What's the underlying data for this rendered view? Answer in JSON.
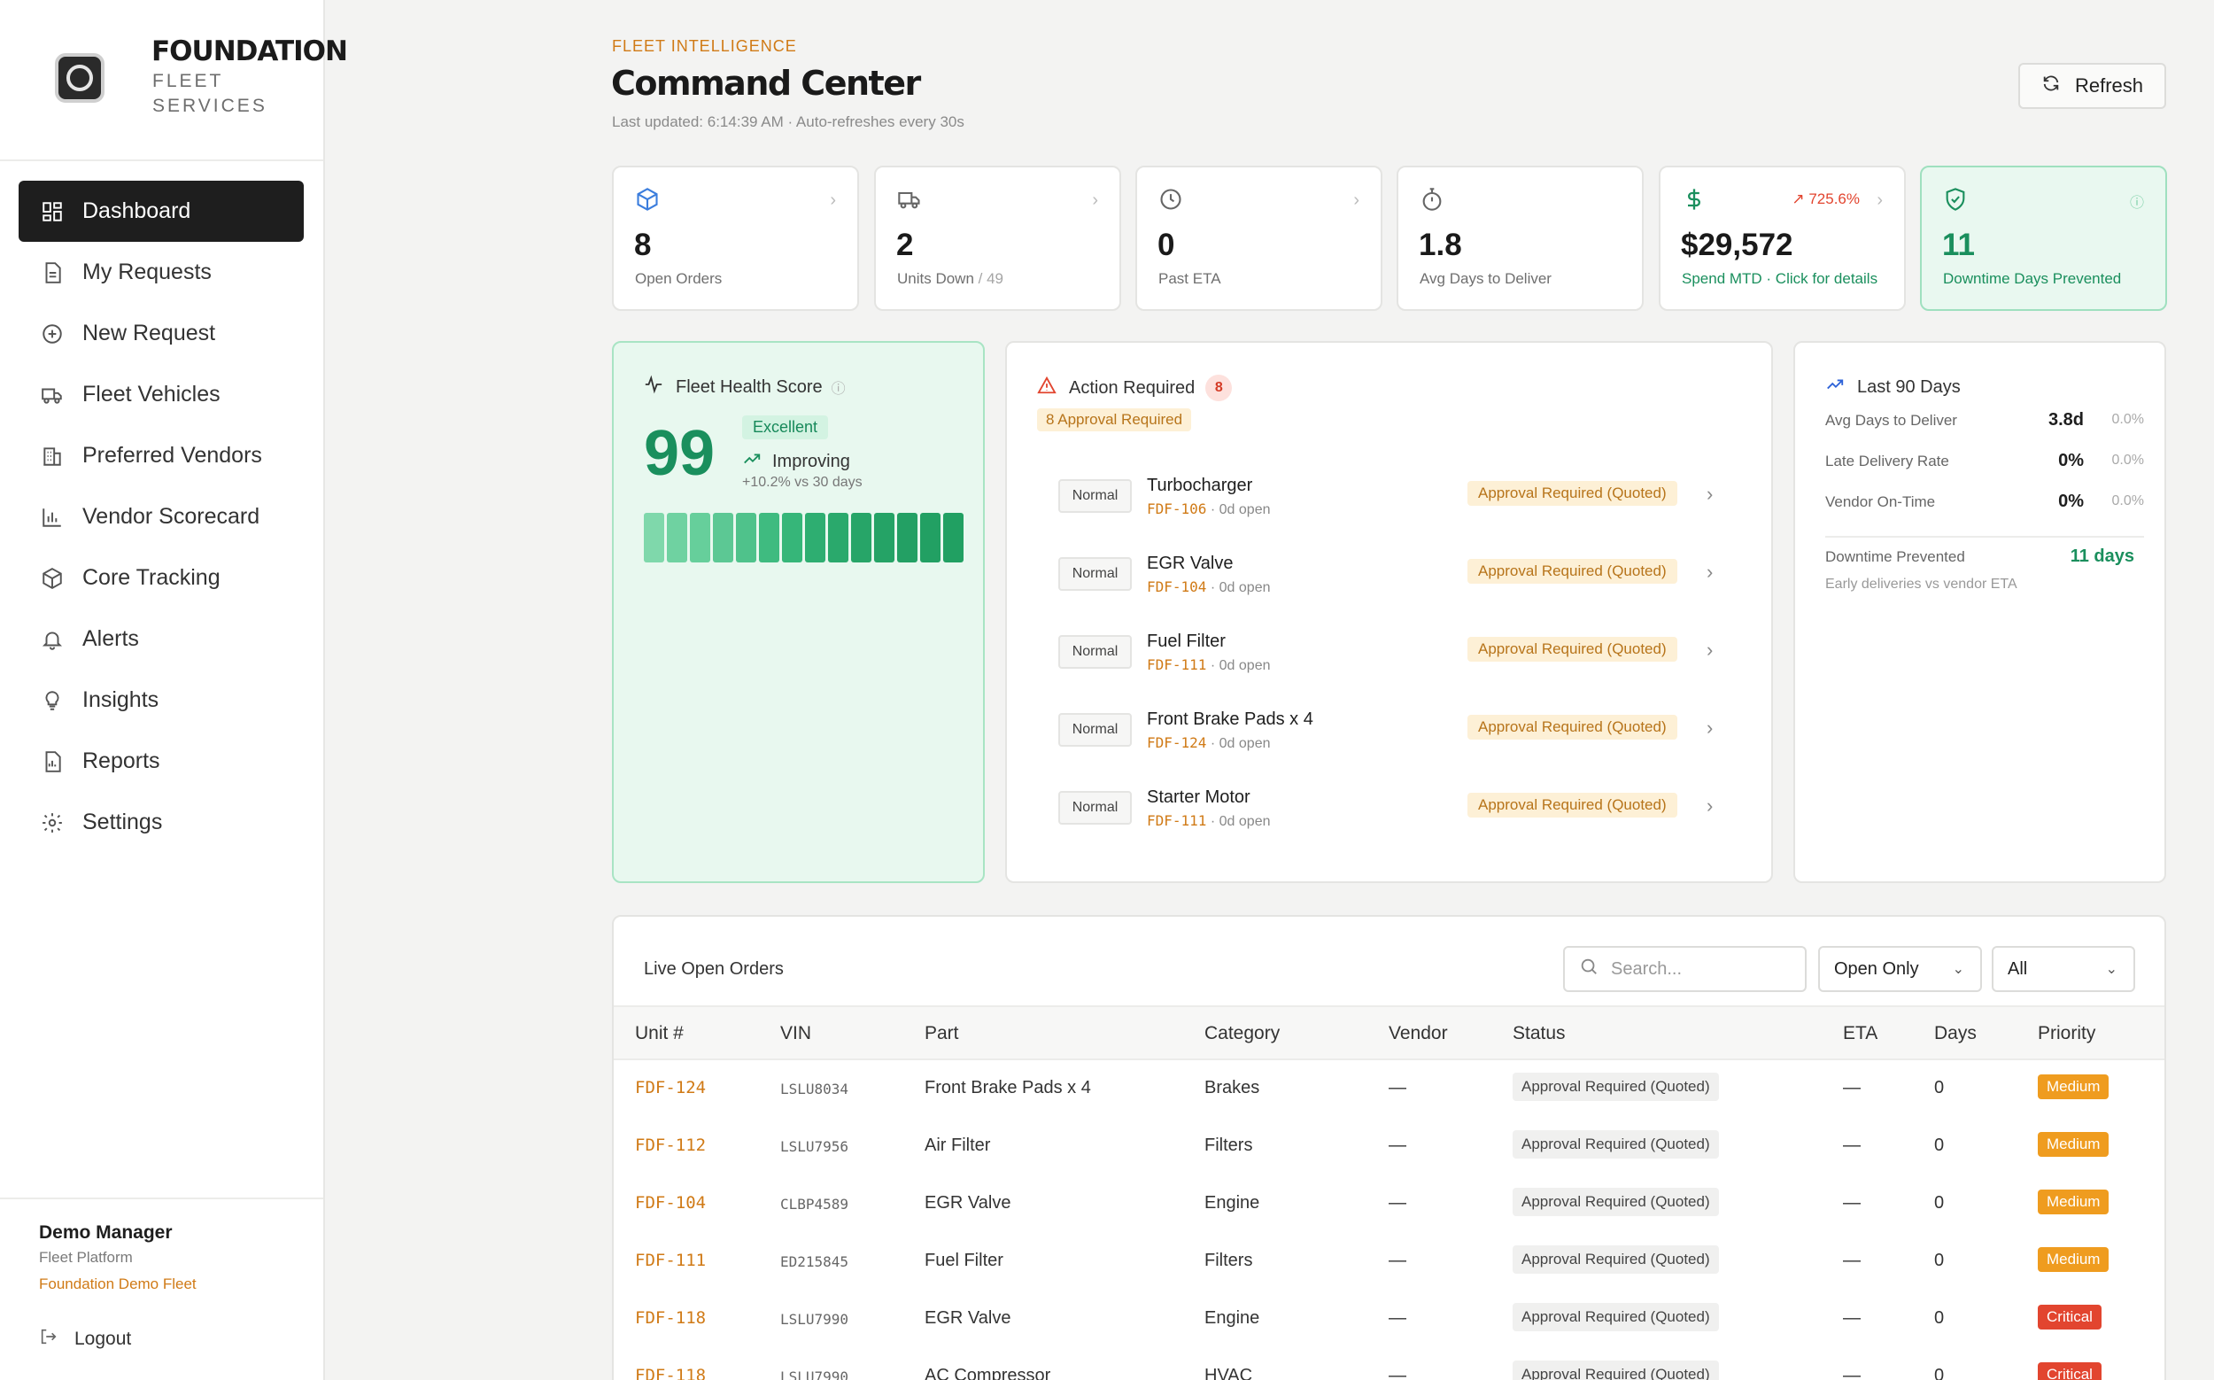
{
  "brand": {
    "name": "FOUNDATION",
    "sub1": "FLEET",
    "sub2": "SERVICES"
  },
  "nav": [
    {
      "label": "Dashboard",
      "icon": "grid-icon",
      "active": true
    },
    {
      "label": "My Requests",
      "icon": "document-icon"
    },
    {
      "label": "New Request",
      "icon": "plus-circle-icon"
    },
    {
      "label": "Fleet Vehicles",
      "icon": "truck-icon"
    },
    {
      "label": "Preferred Vendors",
      "icon": "building-icon"
    },
    {
      "label": "Vendor Scorecard",
      "icon": "bar-chart-icon"
    },
    {
      "label": "Core Tracking",
      "icon": "box-icon"
    },
    {
      "label": "Alerts",
      "icon": "bell-icon"
    },
    {
      "label": "Insights",
      "icon": "lightbulb-icon"
    },
    {
      "label": "Reports",
      "icon": "report-icon"
    },
    {
      "label": "Settings",
      "icon": "gear-icon"
    }
  ],
  "user": {
    "name": "Demo Manager",
    "role": "Fleet Platform",
    "org": "Foundation Demo Fleet",
    "logout": "Logout"
  },
  "header": {
    "eyebrow": "FLEET INTELLIGENCE",
    "title": "Command Center",
    "updated": "Last updated: 6:14:39 AM · Auto-refreshes every 30s",
    "refresh": "Refresh"
  },
  "kpis": [
    {
      "value": "8",
      "label": "Open Orders",
      "icon": "box-icon"
    },
    {
      "value": "2",
      "label": "Units Down",
      "label_suffix": "/ 49",
      "icon": "truck-icon"
    },
    {
      "value": "0",
      "label": "Past ETA",
      "icon": "clock-icon"
    },
    {
      "value": "1.8",
      "label": "Avg Days to Deliver",
      "icon": "stopwatch-icon"
    },
    {
      "value": "$29,572",
      "label": "Spend MTD · Click for details",
      "delta": "↗ 725.6%",
      "icon": "dollar-icon"
    },
    {
      "value": "11",
      "label": "Downtime Days Prevented",
      "icon": "shield-check-icon"
    }
  ],
  "health": {
    "title": "Fleet Health Score",
    "score": "99",
    "rating": "Excellent",
    "trend": "Improving",
    "trend_sub": "+10.2% vs 30 days",
    "bars": [
      "#7fd8ab",
      "#6fd2a1",
      "#66cf9b",
      "#5cc894",
      "#4fc28b",
      "#3fbb80",
      "#36b679",
      "#2eae71",
      "#2aa96c",
      "#27a568",
      "#25a366",
      "#23a064",
      "#22a063",
      "#21a062"
    ]
  },
  "action": {
    "title": "Action Required",
    "count": "8",
    "badge": "8 Approval Required",
    "items": [
      {
        "priority": "Normal",
        "part": "Turbocharger",
        "unit": "FDF-106",
        "open": "0d open",
        "status": "Approval Required (Quoted)"
      },
      {
        "priority": "Normal",
        "part": "EGR Valve",
        "unit": "FDF-104",
        "open": "0d open",
        "status": "Approval Required (Quoted)"
      },
      {
        "priority": "Normal",
        "part": "Fuel Filter",
        "unit": "FDF-111",
        "open": "0d open",
        "status": "Approval Required (Quoted)"
      },
      {
        "priority": "Normal",
        "part": "Front Brake Pads x 4",
        "unit": "FDF-124",
        "open": "0d open",
        "status": "Approval Required (Quoted)"
      },
      {
        "priority": "Normal",
        "part": "Starter Motor",
        "unit": "FDF-111",
        "open": "0d open",
        "status": "Approval Required (Quoted)"
      }
    ]
  },
  "last90": {
    "title": "Last 90 Days",
    "rows": [
      {
        "label": "Avg Days to Deliver",
        "value": "3.8d",
        "delta": "0.0%"
      },
      {
        "label": "Late Delivery Rate",
        "value": "0%",
        "delta": "0.0%"
      },
      {
        "label": "Vendor On-Time",
        "value": "0%",
        "delta": "0.0%"
      }
    ],
    "prevented_label": "Downtime Prevented",
    "prevented_value": "11 days",
    "note": "Early deliveries vs vendor ETA"
  },
  "orders": {
    "title": "Live Open Orders",
    "search_placeholder": "Search...",
    "filter_open": "Open Only",
    "filter_all": "All",
    "columns": [
      "Unit #",
      "VIN",
      "Part",
      "Category",
      "Vendor",
      "Status",
      "ETA",
      "Days",
      "Priority"
    ],
    "rows": [
      {
        "unit": "FDF-124",
        "vin": "LSLU8034",
        "part": "Front Brake Pads x 4",
        "category": "Brakes",
        "vendor": "—",
        "status": "Approval Required (Quoted)",
        "eta": "—",
        "days": "0",
        "priority": "Medium"
      },
      {
        "unit": "FDF-112",
        "vin": "LSLU7956",
        "part": "Air Filter",
        "category": "Filters",
        "vendor": "—",
        "status": "Approval Required (Quoted)",
        "eta": "—",
        "days": "0",
        "priority": "Medium"
      },
      {
        "unit": "FDF-104",
        "vin": "CLBP4589",
        "part": "EGR Valve",
        "category": "Engine",
        "vendor": "—",
        "status": "Approval Required (Quoted)",
        "eta": "—",
        "days": "0",
        "priority": "Medium"
      },
      {
        "unit": "FDF-111",
        "vin": "ED215845",
        "part": "Fuel Filter",
        "category": "Filters",
        "vendor": "—",
        "status": "Approval Required (Quoted)",
        "eta": "—",
        "days": "0",
        "priority": "Medium"
      },
      {
        "unit": "FDF-118",
        "vin": "LSLU7990",
        "part": "EGR Valve",
        "category": "Engine",
        "vendor": "—",
        "status": "Approval Required (Quoted)",
        "eta": "—",
        "days": "0",
        "priority": "Critical"
      },
      {
        "unit": "FDF-118",
        "vin": "LSLU7990",
        "part": "AC Compressor",
        "category": "HVAC",
        "vendor": "—",
        "status": "Approval Required (Quoted)",
        "eta": "—",
        "days": "0",
        "priority": "Critical"
      }
    ]
  }
}
